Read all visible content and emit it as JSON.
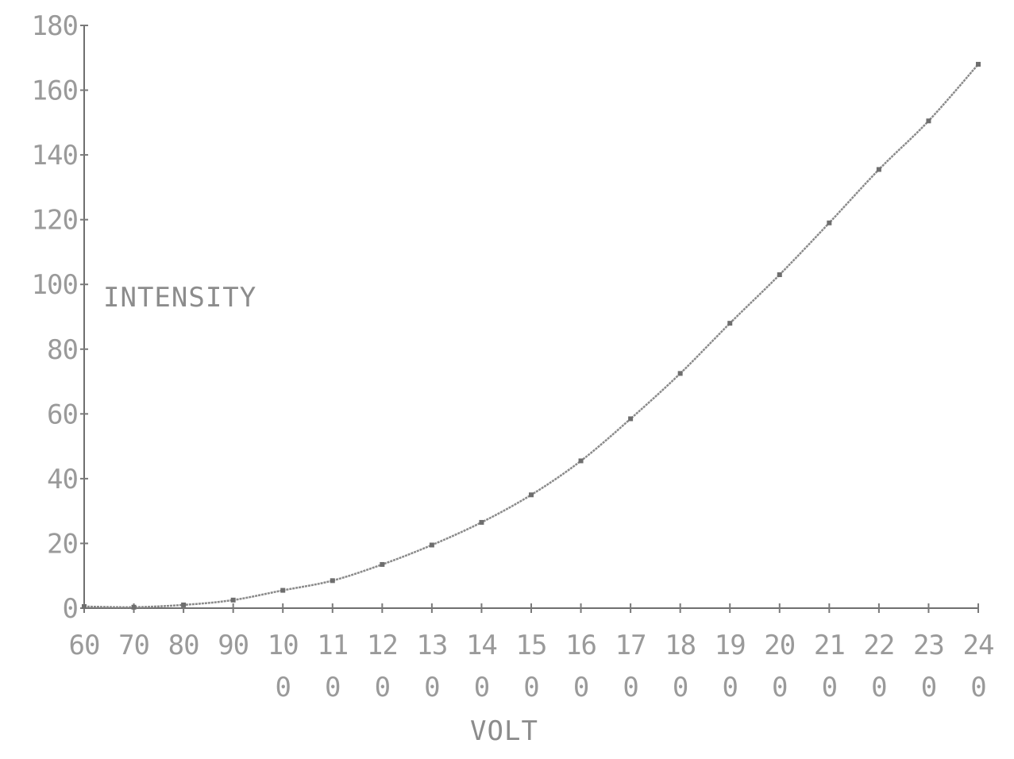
{
  "chart_data": {
    "type": "line",
    "title": "",
    "xlabel": "VOLT",
    "ylabel": "INTENSITY",
    "xlim": [
      60,
      240
    ],
    "ylim": [
      0,
      180
    ],
    "x_ticks": [
      60,
      70,
      80,
      90,
      100,
      110,
      120,
      130,
      140,
      150,
      160,
      170,
      180,
      190,
      200,
      210,
      220,
      230,
      240
    ],
    "x_tick_labels": [
      {
        "line1": "60",
        "line2": ""
      },
      {
        "line1": "70",
        "line2": ""
      },
      {
        "line1": "80",
        "line2": ""
      },
      {
        "line1": "90",
        "line2": ""
      },
      {
        "line1": "10",
        "line2": "0"
      },
      {
        "line1": "11",
        "line2": "0"
      },
      {
        "line1": "12",
        "line2": "0"
      },
      {
        "line1": "13",
        "line2": "0"
      },
      {
        "line1": "14",
        "line2": "0"
      },
      {
        "line1": "15",
        "line2": "0"
      },
      {
        "line1": "16",
        "line2": "0"
      },
      {
        "line1": "17",
        "line2": "0"
      },
      {
        "line1": "18",
        "line2": "0"
      },
      {
        "line1": "19",
        "line2": "0"
      },
      {
        "line1": "20",
        "line2": "0"
      },
      {
        "line1": "21",
        "line2": "0"
      },
      {
        "line1": "22",
        "line2": "0"
      },
      {
        "line1": "23",
        "line2": "0"
      },
      {
        "line1": "24",
        "line2": "0"
      }
    ],
    "y_ticks": [
      0,
      20,
      40,
      60,
      80,
      100,
      120,
      140,
      160,
      180
    ],
    "y_tick_labels": [
      "0",
      "20",
      "40",
      "60",
      "80",
      "100",
      "120",
      "140",
      "160",
      "180"
    ],
    "series": [
      {
        "x": [
          60,
          70,
          80,
          90,
          100,
          110,
          120,
          130,
          140,
          150,
          160,
          170,
          180,
          190,
          200,
          210,
          220,
          230,
          240
        ],
        "values": [
          0.5,
          0.3,
          1.0,
          2.5,
          5.5,
          8.5,
          13.5,
          19.5,
          26.5,
          35.0,
          45.5,
          58.5,
          72.5,
          88.0,
          103.0,
          119.0,
          135.5,
          150.5,
          168.0
        ]
      }
    ],
    "grid": false,
    "colors": {
      "line": "#8a8a8a",
      "axis": "#6f6f6f",
      "text": "#9a9a9a"
    }
  }
}
